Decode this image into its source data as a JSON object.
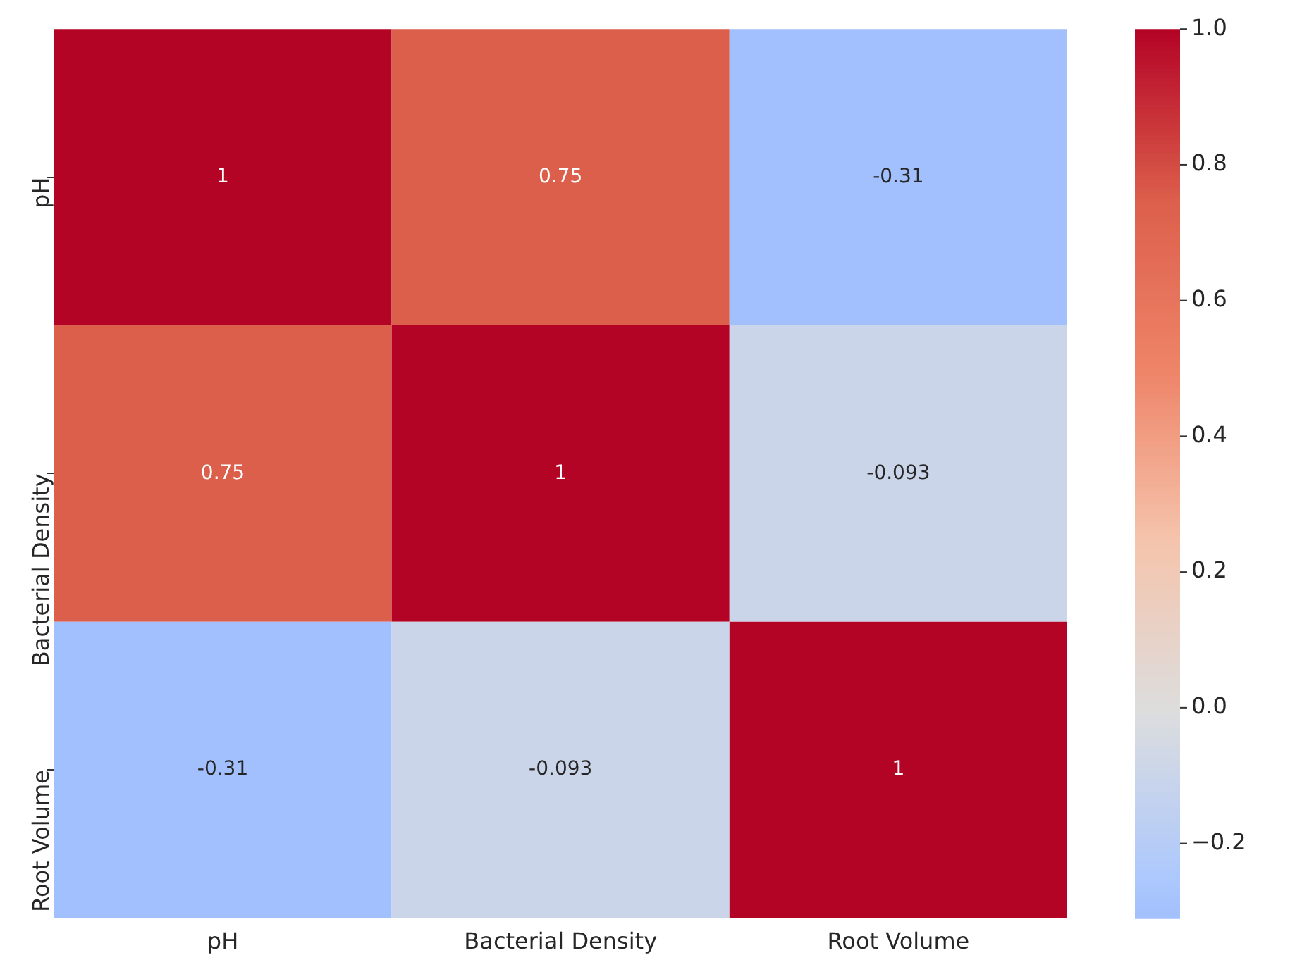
{
  "chart_data": {
    "type": "heatmap",
    "categories": [
      "pH",
      "Bacterial Density",
      "Root Volume"
    ],
    "y_categories": [
      "pH",
      "Bacterial Density",
      "Root Volume"
    ],
    "cells": [
      [
        1,
        0.75,
        -0.31
      ],
      [
        0.75,
        1,
        -0.093
      ],
      [
        -0.31,
        -0.093,
        1
      ]
    ],
    "cell_labels": [
      [
        "1",
        "0.75",
        "-0.31"
      ],
      [
        "0.75",
        "1",
        "-0.093"
      ],
      [
        "-0.31",
        "-0.093",
        "1"
      ]
    ],
    "clim": [
      -0.31,
      1.0
    ],
    "cticks": [
      {
        "value": -0.2,
        "label": "−0.2"
      },
      {
        "value": 0,
        "label": "0.0"
      },
      {
        "value": 0.2,
        "label": "0.2"
      },
      {
        "value": 0.4,
        "label": "0.4"
      },
      {
        "value": 0.6,
        "label": "0.6"
      },
      {
        "value": 0.8,
        "label": "0.8"
      },
      {
        "value": 1,
        "label": "1.0"
      }
    ],
    "grid": false
  }
}
